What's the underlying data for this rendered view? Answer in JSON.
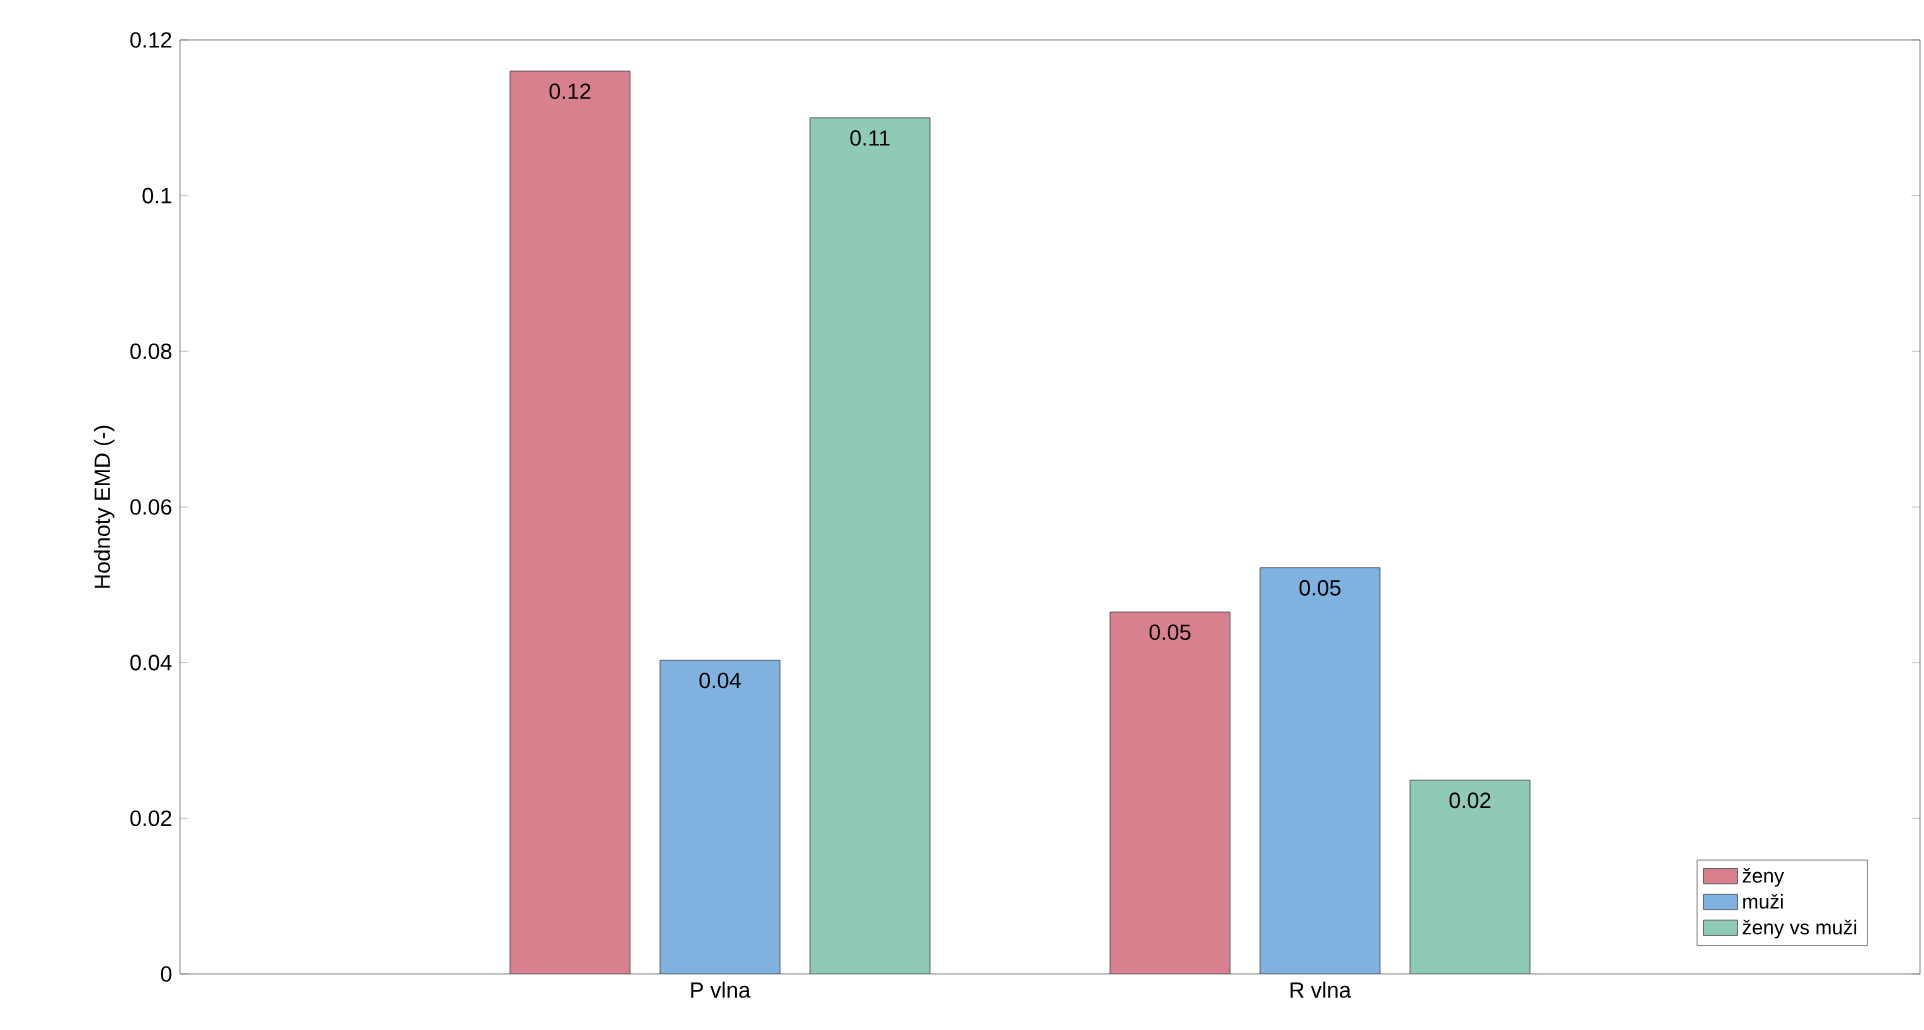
{
  "chart_data": {
    "type": "bar",
    "ylabel": "Hodnoty EMD (-)",
    "categories": [
      "P vlna",
      "R vlna"
    ],
    "series": [
      {
        "name": "ženy",
        "color": "#d9808f",
        "values": [
          0.116,
          0.0465
        ],
        "value_labels": [
          "0.12",
          "0.05"
        ]
      },
      {
        "name": "muži",
        "color": "#7fb2df",
        "values": [
          0.0403,
          0.0522
        ],
        "value_labels": [
          "0.04",
          "0.05"
        ]
      },
      {
        "name": "ženy vs muži",
        "color": "#8fcbb4",
        "values": [
          0.11,
          0.0249
        ],
        "value_labels": [
          "0.11",
          "0.02"
        ]
      }
    ],
    "ylim": [
      0,
      0.12
    ],
    "yticks": [
      0,
      0.02,
      0.04,
      0.06,
      0.08,
      0.1,
      0.12
    ],
    "legend": "bottom right",
    "grid": false
  }
}
